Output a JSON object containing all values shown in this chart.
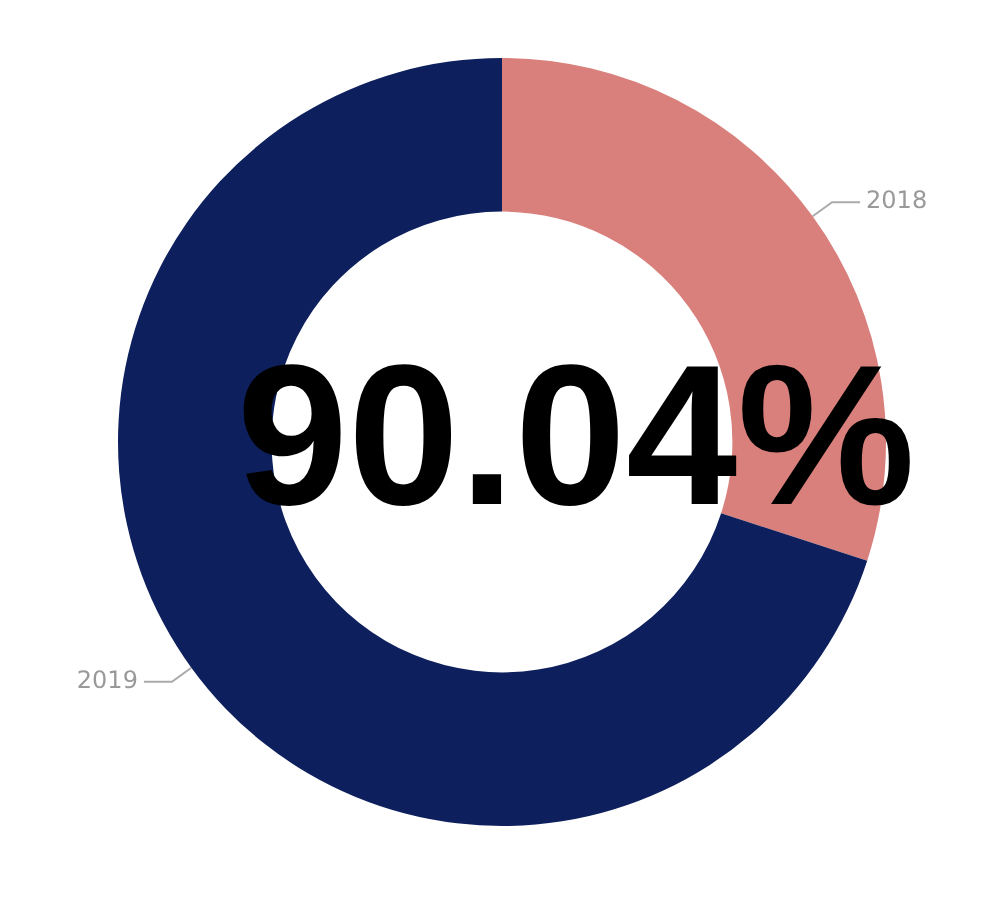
{
  "chart_data": {
    "type": "donut",
    "categories": [
      "2018",
      "2019"
    ],
    "values": [
      30,
      70
    ],
    "colors": [
      "#d9807c",
      "#0d1f5c"
    ],
    "annotations": [
      "90.04%"
    ],
    "legend": false
  }
}
